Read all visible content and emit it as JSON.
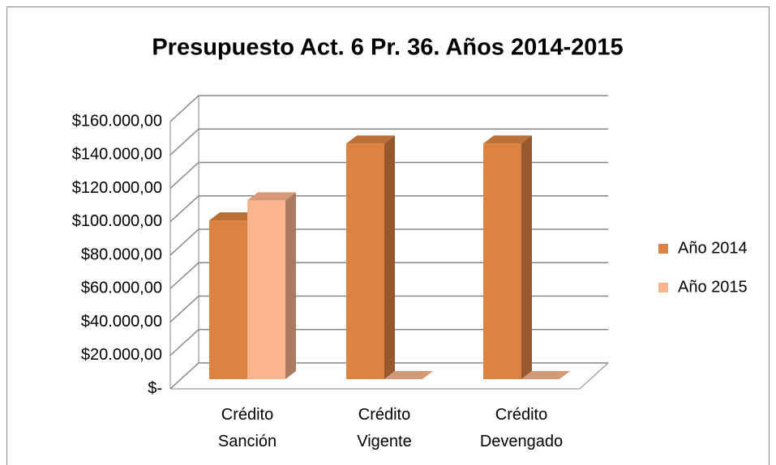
{
  "chart_data": {
    "type": "bar3d",
    "title": "Presupuesto Act. 6 Pr. 36. Años 2014-2015",
    "categories": [
      "Crédito Sanción",
      "Crédito Vigente",
      "Crédito Devengado"
    ],
    "series": [
      {
        "name": "Año 2014",
        "color": "#dd8241",
        "values": [
          95000,
          141000,
          141000
        ]
      },
      {
        "name": "Año 2015",
        "color": "#fbb48c",
        "values": [
          107000,
          0,
          0
        ]
      }
    ],
    "ylim": [
      0,
      160000
    ],
    "yticks": [
      {
        "value": 0,
        "label": "$-"
      },
      {
        "value": 20000,
        "label": "$20.000,00"
      },
      {
        "value": 40000,
        "label": "$40.000,00"
      },
      {
        "value": 60000,
        "label": "$60.000,00"
      },
      {
        "value": 80000,
        "label": "$80.000,00"
      },
      {
        "value": 100000,
        "label": "$100.000,00"
      },
      {
        "value": 120000,
        "label": "$120.000,00"
      },
      {
        "value": 140000,
        "label": "$140.000,00"
      },
      {
        "value": 160000,
        "label": "$160.000,00"
      }
    ],
    "grid": true,
    "legend": "right"
  }
}
